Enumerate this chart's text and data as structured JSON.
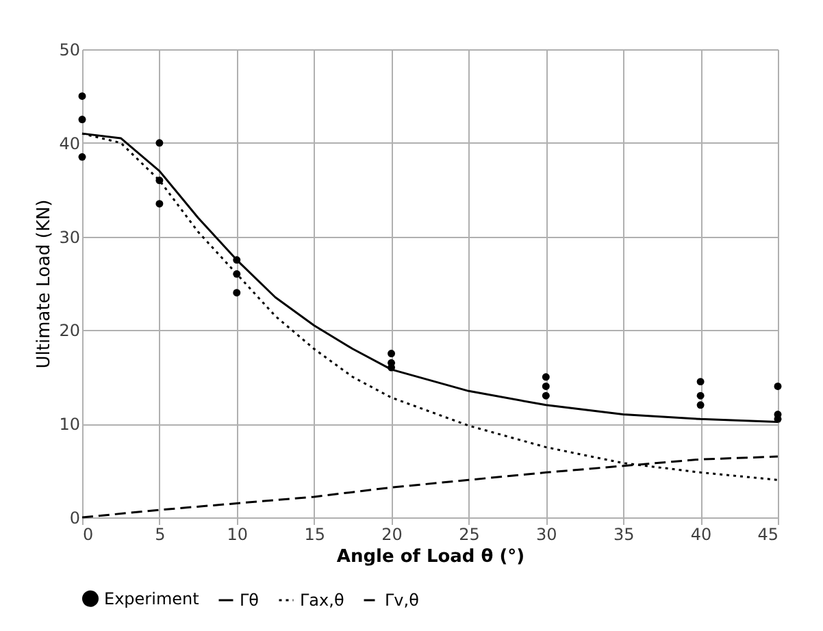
{
  "chart_data": {
    "type": "line",
    "xlabel": "Angle of Load θ (°)",
    "ylabel": "Ultimate Load (KN)",
    "xlim": [
      0,
      45
    ],
    "xticks": [
      0,
      5,
      10,
      15,
      20,
      25,
      30,
      35,
      40,
      45
    ],
    "ylim": [
      0,
      50
    ],
    "yticks": [
      0,
      10,
      20,
      30,
      40,
      50
    ],
    "grid": true,
    "legend": "bottom",
    "series": [
      {
        "name": "Experiment",
        "type": "scatter",
        "marker": "circle",
        "color": "#000000",
        "x": [
          0,
          0,
          0,
          5,
          5,
          5,
          10,
          10,
          10,
          20,
          20,
          20,
          30,
          30,
          30,
          40,
          40,
          40,
          45,
          45,
          45
        ],
        "values": [
          45,
          42.5,
          38.5,
          40,
          36,
          33.5,
          27.5,
          26,
          24,
          17.5,
          16.5,
          16,
          15,
          14,
          13,
          14.5,
          13,
          12,
          14,
          11,
          10.5
        ]
      },
      {
        "name": "Γθ",
        "line_style": "solid",
        "color": "#000000",
        "x": [
          0,
          2.5,
          5,
          7.5,
          10,
          12.5,
          15,
          17.5,
          20,
          25,
          30,
          35,
          40,
          45
        ],
        "values": [
          41,
          40.5,
          37,
          32,
          27.5,
          23.5,
          20.5,
          18,
          15.8,
          13.5,
          12,
          11,
          10.5,
          10.2
        ]
      },
      {
        "name": "Γax,θ",
        "line_style": "dotted",
        "color": "#000000",
        "x": [
          0,
          2.5,
          5,
          7.5,
          10,
          12.5,
          15,
          17.5,
          20,
          25,
          30,
          35,
          40,
          45
        ],
        "values": [
          41,
          40,
          36,
          30.5,
          26,
          21.5,
          18,
          15,
          12.8,
          9.8,
          7.5,
          5.8,
          4.8,
          4
        ]
      },
      {
        "name": "Γv,θ",
        "line_style": "dashed",
        "color": "#000000",
        "x": [
          0,
          5,
          10,
          15,
          20,
          25,
          30,
          35,
          40,
          45
        ],
        "values": [
          0,
          0.8,
          1.5,
          2.2,
          3.2,
          4,
          4.8,
          5.5,
          6.2,
          6.5
        ]
      }
    ]
  }
}
